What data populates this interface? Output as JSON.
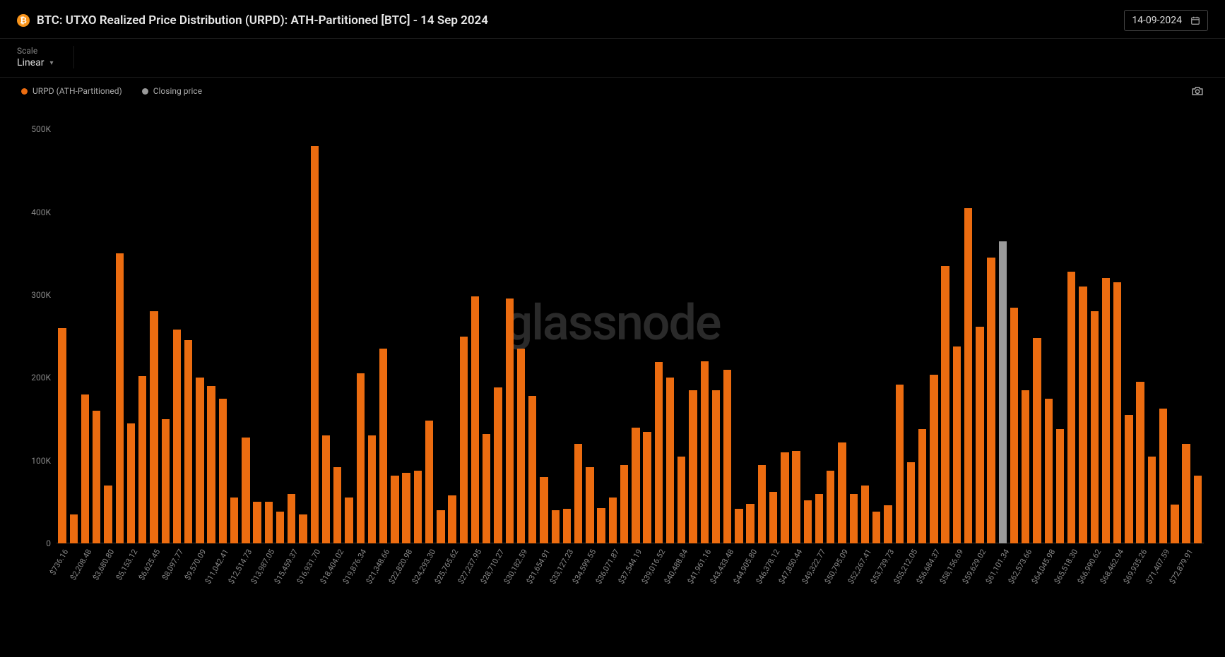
{
  "header": {
    "icon_letter": "₿",
    "title": "BTC: UTXO Realized Price Distribution (URPD): ATH-Partitioned [BTC] - 14 Sep 2024",
    "date_value": "14-09-2024"
  },
  "controls": {
    "scale_label": "Scale",
    "scale_value": "Linear"
  },
  "legend": {
    "items": [
      {
        "label": "URPD (ATH-Partitioned)",
        "color": "#ec6c10"
      },
      {
        "label": "Closing price",
        "color": "#9a9a9a"
      }
    ]
  },
  "watermark": "glassnode",
  "chart": {
    "type": "bar",
    "bar_color": "#ec6c10",
    "closing_color": "#9a9a9a",
    "background_color": "#000000",
    "axis_color": "#888888",
    "grid_color": "#333333",
    "ylabel_fontsize": 12,
    "xlabel_fontsize": 11,
    "xlabel_rotation_deg": -60,
    "ylim": [
      0,
      530000
    ],
    "yticks": [
      {
        "v": 0,
        "label": "0"
      },
      {
        "v": 100000,
        "label": "100K"
      },
      {
        "v": 200000,
        "label": "200K"
      },
      {
        "v": 300000,
        "label": "300K"
      },
      {
        "v": 400000,
        "label": "400K"
      },
      {
        "v": 500000,
        "label": "500K"
      }
    ],
    "closing_price_index": 82,
    "categories": [
      "$736.16",
      "",
      "$2,208.48",
      "",
      "$3,680.80",
      "",
      "$5,153.12",
      "",
      "$6,625.45",
      "",
      "$8,097.77",
      "",
      "$9,570.09",
      "",
      "$11,042.41",
      "",
      "$12,514.73",
      "",
      "$13,987.05",
      "",
      "$15,459.37",
      "",
      "$16,931.70",
      "",
      "$18,404.02",
      "",
      "$19,876.34",
      "",
      "$21,348.66",
      "",
      "$22,820.98",
      "",
      "$24,293.30",
      "",
      "$25,765.62",
      "",
      "$27,237.95",
      "",
      "$28,710.27",
      "",
      "$30,182.59",
      "",
      "$31,654.91",
      "",
      "$33,127.23",
      "",
      "$34,599.55",
      "",
      "$36,071.87",
      "",
      "$37,544.19",
      "",
      "$39,016.52",
      "",
      "$40,488.84",
      "",
      "$41,961.16",
      "",
      "$43,433.48",
      "",
      "$44,905.80",
      "",
      "$46,378.12",
      "",
      "$47,850.44",
      "",
      "$49,322.77",
      "",
      "$50,795.09",
      "",
      "$52,267.41",
      "",
      "$53,739.73",
      "",
      "$55,212.05",
      "",
      "$56,684.37",
      "",
      "$58,156.69",
      "",
      "$59,629.02",
      "",
      "$61,101.34",
      "",
      "$62,573.66",
      "",
      "$64,045.98",
      "",
      "$65,518.30",
      "",
      "$66,990.62",
      "",
      "$68,462.94",
      "",
      "$69,935.26",
      "",
      "$71,407.59",
      "",
      "$72,879.91"
    ],
    "values": [
      260000,
      35000,
      180000,
      160000,
      70000,
      350000,
      145000,
      202000,
      280000,
      150000,
      258000,
      245000,
      200000,
      190000,
      175000,
      55000,
      128000,
      50000,
      50000,
      38000,
      60000,
      35000,
      480000,
      130000,
      92000,
      55000,
      205000,
      130000,
      235000,
      82000,
      85000,
      88000,
      148000,
      40000,
      58000,
      250000,
      298000,
      132000,
      188000,
      296000,
      235000,
      178000,
      80000,
      40000,
      42000,
      120000,
      92000,
      43000,
      55000,
      95000,
      140000,
      135000,
      219000,
      200000,
      105000,
      185000,
      220000,
      185000,
      210000,
      42000,
      48000,
      95000,
      62000,
      110000,
      112000,
      52000,
      60000,
      88000,
      122000,
      60000,
      70000,
      38000,
      46000,
      192000,
      98000,
      138000,
      204000,
      335000,
      238000,
      405000,
      262000,
      345000,
      365000,
      285000,
      185000,
      248000,
      175000,
      138000,
      328000,
      310000,
      280000,
      320000,
      315000,
      155000,
      195000,
      105000,
      163000,
      47000,
      120000,
      82000
    ]
  }
}
